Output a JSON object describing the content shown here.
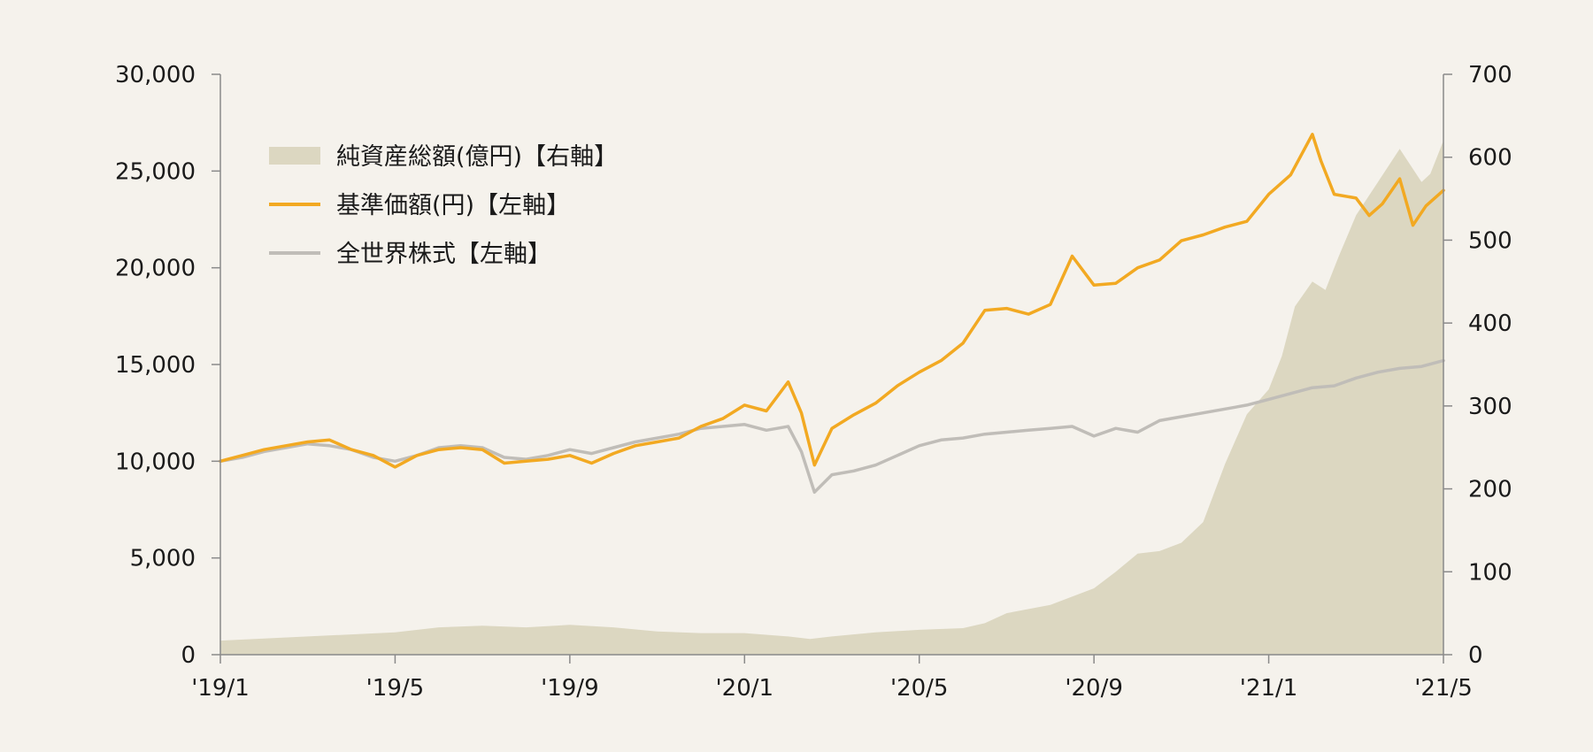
{
  "chart_data": {
    "type": "line",
    "title": "",
    "xlabel": "",
    "ylabel": "",
    "x_range": [
      "2019-01",
      "2021-05"
    ],
    "x_ticks": [
      "'19/1",
      "'19/5",
      "'19/9",
      "'20/1",
      "'20/5",
      "'20/9",
      "'21/1",
      "'21/5"
    ],
    "x_tick_months": [
      0,
      4,
      8,
      12,
      16,
      20,
      24,
      28
    ],
    "left_axis": {
      "ylim": [
        0,
        30000
      ],
      "ticks": [
        0,
        5000,
        10000,
        15000,
        20000,
        25000,
        30000
      ],
      "tick_labels": [
        "0",
        "5,000",
        "10,000",
        "15,000",
        "20,000",
        "25,000",
        "30,000"
      ]
    },
    "right_axis": {
      "ylim": [
        0,
        700
      ],
      "ticks": [
        0,
        100,
        200,
        300,
        400,
        500,
        600,
        700
      ],
      "tick_labels": [
        "0",
        "100",
        "200",
        "300",
        "400",
        "500",
        "600",
        "700"
      ]
    },
    "grid": false,
    "legend_position": "top-left",
    "series": [
      {
        "name": "純資産総額(億円)【右軸】",
        "kind": "area",
        "axis": "right",
        "color": "#dcd7c1",
        "x": [
          0,
          2,
          4,
          5,
          6,
          7,
          8,
          9,
          10,
          11,
          12,
          13,
          13.5,
          14,
          15,
          16,
          17,
          17.5,
          18,
          19,
          20,
          20.5,
          21,
          21.5,
          22,
          22.5,
          23,
          23.5,
          24,
          24.3,
          24.6,
          25,
          25.3,
          25.6,
          26,
          26.5,
          27,
          27.5,
          27.7,
          28
        ],
        "y": [
          17,
          22,
          27,
          33,
          35,
          33,
          36,
          33,
          28,
          26,
          26,
          22,
          19,
          22,
          27,
          30,
          32,
          38,
          50,
          60,
          80,
          100,
          122,
          125,
          135,
          160,
          230,
          290,
          320,
          360,
          420,
          450,
          440,
          480,
          530,
          570,
          610,
          570,
          580,
          620
        ]
      },
      {
        "name": "基準価額(円)【左軸】",
        "kind": "line",
        "axis": "left",
        "color": "#f2a922",
        "x": [
          0,
          0.5,
          1,
          1.5,
          2,
          2.5,
          3,
          3.5,
          4,
          4.5,
          5,
          5.5,
          6,
          6.5,
          7,
          7.5,
          8,
          8.5,
          9,
          9.5,
          10,
          10.5,
          11,
          11.5,
          12,
          12.5,
          13,
          13.3,
          13.6,
          14,
          14.5,
          15,
          15.5,
          16,
          16.5,
          17,
          17.5,
          18,
          18.5,
          19,
          19.5,
          20,
          20.5,
          21,
          21.5,
          22,
          22.5,
          23,
          23.5,
          24,
          24.5,
          25,
          25.2,
          25.5,
          26,
          26.3,
          26.6,
          27,
          27.3,
          27.6,
          28
        ],
        "y": [
          10000,
          10300,
          10600,
          10800,
          11000,
          11100,
          10600,
          10300,
          9700,
          10300,
          10600,
          10700,
          10600,
          9900,
          10000,
          10100,
          10300,
          9900,
          10400,
          10800,
          11000,
          11200,
          11800,
          12200,
          12900,
          12600,
          14100,
          12500,
          9800,
          11700,
          12400,
          13000,
          13900,
          14600,
          15200,
          16100,
          17800,
          17900,
          17600,
          18100,
          20600,
          19100,
          19200,
          20000,
          20400,
          21400,
          21700,
          22100,
          22400,
          23800,
          24800,
          26900,
          25500,
          23800,
          23600,
          22700,
          23300,
          24600,
          22200,
          23200,
          24000
        ]
      },
      {
        "name": "全世界株式【左軸】",
        "kind": "line",
        "axis": "left",
        "color": "#c0bdb8",
        "x": [
          0,
          0.5,
          1,
          1.5,
          2,
          2.5,
          3,
          3.5,
          4,
          4.5,
          5,
          5.5,
          6,
          6.5,
          7,
          7.5,
          8,
          8.5,
          9,
          9.5,
          10,
          10.5,
          11,
          11.5,
          12,
          12.5,
          13,
          13.3,
          13.6,
          14,
          14.5,
          15,
          15.5,
          16,
          16.5,
          17,
          17.5,
          18,
          18.5,
          19,
          19.5,
          20,
          20.5,
          21,
          21.5,
          22,
          22.5,
          23,
          23.5,
          24,
          24.5,
          25,
          25.5,
          26,
          26.5,
          27,
          27.5,
          28
        ],
        "y": [
          10000,
          10200,
          10500,
          10700,
          10900,
          10800,
          10600,
          10200,
          10000,
          10300,
          10700,
          10800,
          10700,
          10200,
          10100,
          10300,
          10600,
          10400,
          10700,
          11000,
          11200,
          11400,
          11700,
          11800,
          11900,
          11600,
          11800,
          10500,
          8400,
          9300,
          9500,
          9800,
          10300,
          10800,
          11100,
          11200,
          11400,
          11500,
          11600,
          11700,
          11800,
          11300,
          11700,
          11500,
          12100,
          12300,
          12500,
          12700,
          12900,
          13200,
          13500,
          13800,
          13900,
          14300,
          14600,
          14800,
          14900,
          15200
        ]
      }
    ]
  }
}
